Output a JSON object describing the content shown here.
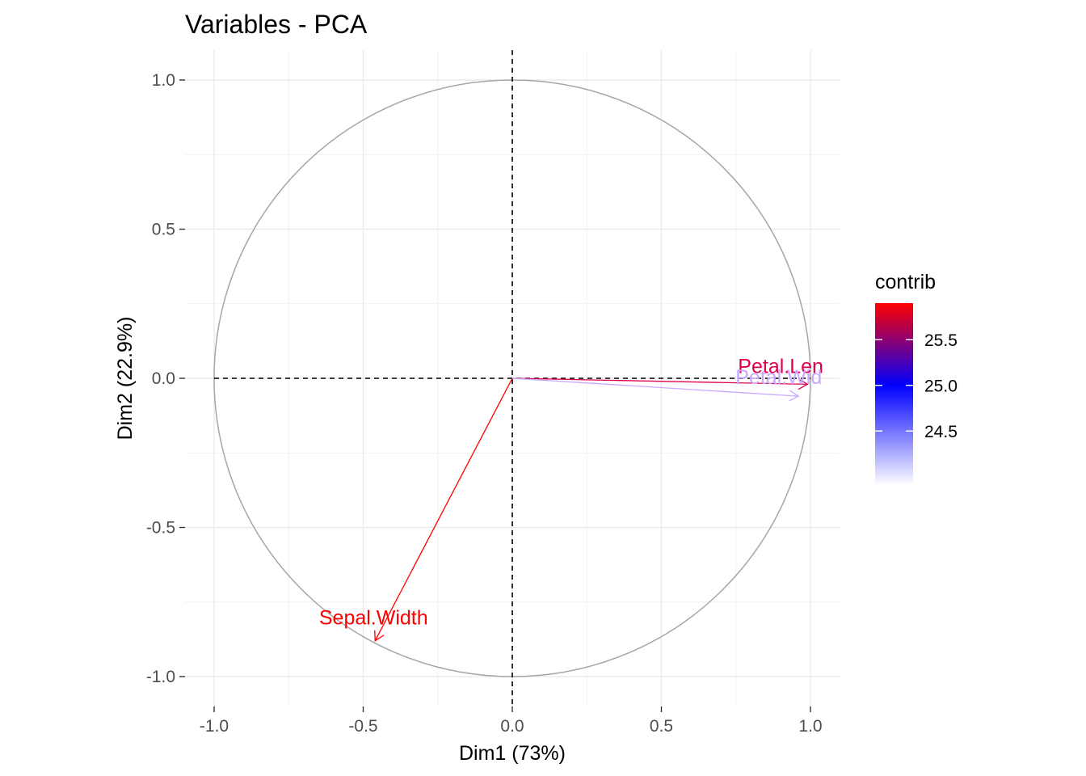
{
  "chart_data": {
    "type": "scatter",
    "subtype": "pca-variable-correlation-circle",
    "title": "Variables - PCA",
    "xlabel": "Dim1 (73%)",
    "ylabel": "Dim2 (22.9%)",
    "xlim": [
      -1.0,
      1.0
    ],
    "ylim": [
      -1.0,
      1.0
    ],
    "x_ticks": [
      -1.0,
      -0.5,
      0.0,
      0.5,
      1.0
    ],
    "x_tick_labels": [
      "-1.0",
      "-0.5",
      "0.0",
      "0.5",
      "1.0"
    ],
    "y_ticks": [
      1.0,
      0.5,
      0.0,
      -0.5,
      -1.0
    ],
    "y_tick_labels": [
      "1.0",
      "0.5",
      "0.0",
      "-0.5",
      "-1.0"
    ],
    "grid": true,
    "unit_circle": true,
    "reference_lines": [
      0,
      0
    ],
    "variables": [
      {
        "label": "Sepal.Width",
        "x": -0.46,
        "y": -0.88,
        "contrib": 25.9,
        "color": "#ff0000"
      },
      {
        "label": "Petal.Len",
        "x": 0.99,
        "y": -0.02,
        "contrib": 25.6,
        "color": "#e0004a"
      },
      {
        "label": "Petal.Wid",
        "x": 0.96,
        "y": -0.06,
        "contrib": 24.2,
        "color": "#c8a8ff"
      }
    ],
    "legend": {
      "title": "contrib",
      "position": "right",
      "ticks": [
        25.5,
        25.0,
        24.5
      ],
      "tick_labels": [
        "25.5",
        "25.0",
        "24.5"
      ],
      "range": [
        23.9,
        25.9
      ],
      "gradient_stops": [
        {
          "value": 25.9,
          "color": "#ff0000"
        },
        {
          "value": 25.0,
          "color": "#0000ff"
        },
        {
          "value": 23.9,
          "color": "#ffffff"
        }
      ]
    }
  }
}
